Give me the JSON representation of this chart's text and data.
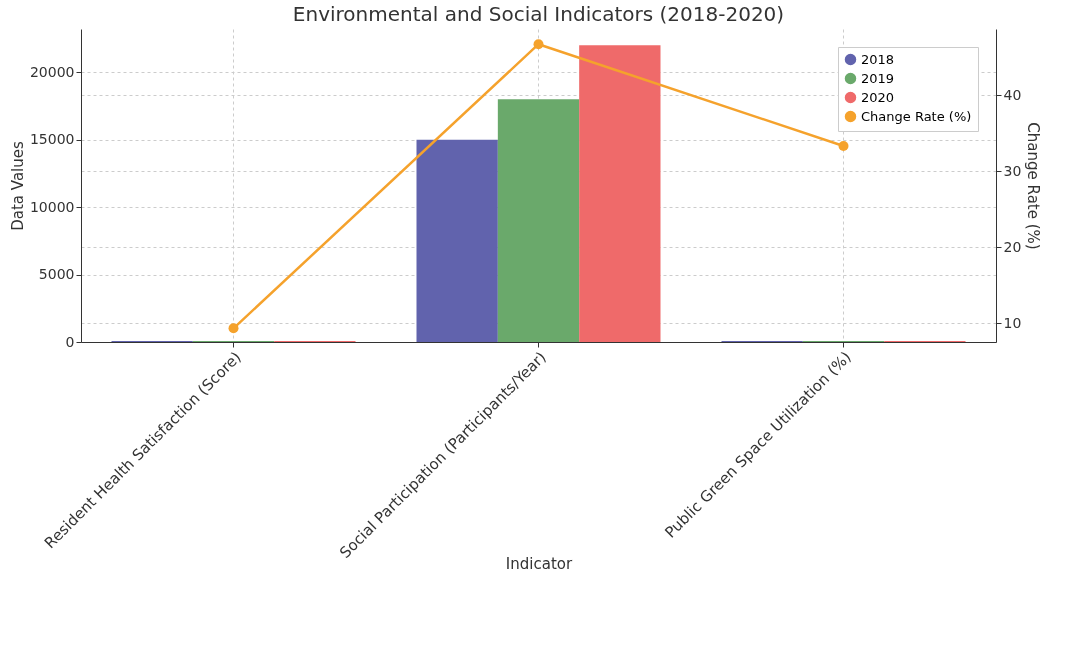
{
  "chart_data": {
    "type": "bar",
    "title": "Environmental and Social Indicators (2018-2020)",
    "xlabel": "Indicator",
    "ylabel": "Data Values",
    "y2label": "Change Rate (%)",
    "categories": [
      "Resident Health Satisfaction (Score)",
      "Social Participation (Participants/Year)",
      "Public Green Space Utilization (%)"
    ],
    "series": [
      {
        "name": "2018",
        "color": "#6163ad",
        "values": [
          80,
          15000,
          70
        ]
      },
      {
        "name": "2019",
        "color": "#6aa96b",
        "values": [
          80,
          18000,
          70
        ]
      },
      {
        "name": "2020",
        "color": "#ef6a6a",
        "values": [
          80,
          22000,
          70
        ]
      },
      {
        "name": "Change Rate (%)",
        "type": "line",
        "axis": "y2",
        "color": "#f5a22c",
        "marker": "circle",
        "values": [
          9.3,
          46.7,
          33.3
        ]
      }
    ],
    "ylim": [
      0,
      23200
    ],
    "yticks": [
      0,
      5000,
      10000,
      15000,
      20000
    ],
    "y2lim": [
      7.5,
      48.7
    ],
    "y2ticks": [
      10,
      20,
      30,
      40
    ],
    "grid": true,
    "legend": "top right"
  }
}
